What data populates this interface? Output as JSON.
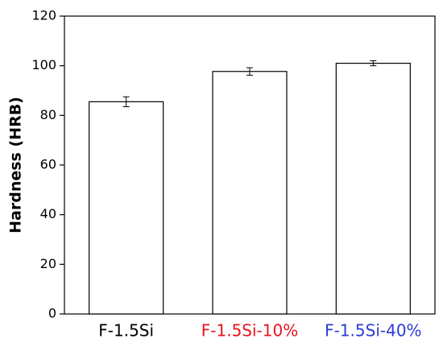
{
  "chart_data": {
    "type": "bar",
    "y_label": "Hardness (HRB)",
    "categories": [
      "F-1.5Si",
      "F-1.5Si-10%",
      "F-1.5Si-40%"
    ],
    "category_colors": [
      "#000000",
      "#e8141b",
      "#2b3bd6"
    ],
    "values": [
      85.5,
      97.7,
      101
    ],
    "errors": [
      2,
      1.5,
      1
    ],
    "color": "#ffffff",
    "ylim": [
      0,
      120
    ],
    "yticks": [
      0,
      20,
      40,
      60,
      80,
      100,
      120
    ],
    "grid": false
  }
}
